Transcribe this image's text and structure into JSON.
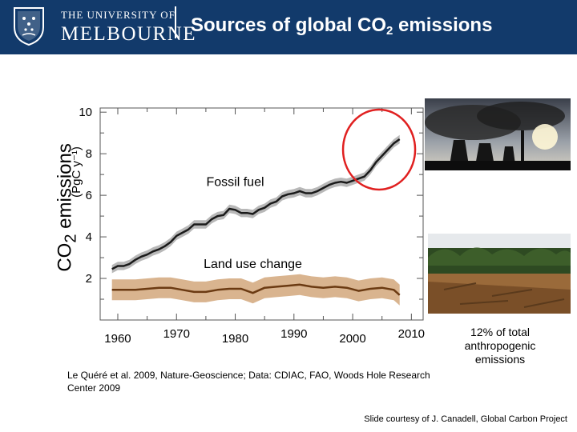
{
  "header": {
    "university_line1": "THE UNIVERSITY OF",
    "university_line2": "MELBOURNE",
    "title_prefix": "Sources of global CO",
    "title_sub": "2",
    "title_suffix": " emissions",
    "bg_color": "#123a6b",
    "crest_icon": "university-crest-icon"
  },
  "chart_data": {
    "type": "line",
    "ylabel_main_prefix": "CO",
    "ylabel_main_sub": "2",
    "ylabel_main_suffix": " emissions",
    "ylabel_unit": "(PgC y⁻¹)",
    "yticks": [
      "10",
      "8",
      "6",
      "4",
      "2"
    ],
    "ytick_values": [
      10,
      8,
      6,
      4,
      2
    ],
    "xticks": [
      "1960",
      "1970",
      "1980",
      "1990",
      "2000",
      "2010"
    ],
    "xtick_values": [
      1960,
      1970,
      1980,
      1990,
      2000,
      2010
    ],
    "xlim": [
      1957,
      2012
    ],
    "ylim": [
      0,
      10.2
    ],
    "grid": false,
    "series": [
      {
        "name": "Fossil fuel",
        "color": "#1a1a1a",
        "band_color": "#b8b8b8",
        "uncertainty": 0.2,
        "x": [
          1959,
          1960,
          1961,
          1962,
          1963,
          1964,
          1965,
          1966,
          1967,
          1968,
          1969,
          1970,
          1971,
          1972,
          1973,
          1974,
          1975,
          1976,
          1977,
          1978,
          1979,
          1980,
          1981,
          1982,
          1983,
          1984,
          1985,
          1986,
          1987,
          1988,
          1989,
          1990,
          1991,
          1992,
          1993,
          1994,
          1995,
          1996,
          1997,
          1998,
          1999,
          2000,
          2001,
          2002,
          2003,
          2004,
          2005,
          2006,
          2007,
          2008
        ],
        "values": [
          2.45,
          2.6,
          2.6,
          2.7,
          2.9,
          3.05,
          3.15,
          3.3,
          3.4,
          3.55,
          3.75,
          4.05,
          4.2,
          4.35,
          4.6,
          4.6,
          4.6,
          4.85,
          5.0,
          5.05,
          5.35,
          5.3,
          5.15,
          5.15,
          5.1,
          5.3,
          5.4,
          5.6,
          5.7,
          5.95,
          6.05,
          6.1,
          6.2,
          6.1,
          6.1,
          6.2,
          6.35,
          6.5,
          6.6,
          6.65,
          6.6,
          6.7,
          6.8,
          6.9,
          7.2,
          7.6,
          7.9,
          8.2,
          8.5,
          8.7
        ]
      },
      {
        "name": "Land use change",
        "color": "#6b3a12",
        "band_color": "#d9b48f",
        "uncertainty": 0.5,
        "x": [
          1959,
          1961,
          1963,
          1965,
          1967,
          1969,
          1971,
          1973,
          1975,
          1977,
          1979,
          1981,
          1983,
          1985,
          1987,
          1989,
          1991,
          1993,
          1995,
          1997,
          1999,
          2001,
          2003,
          2005,
          2007,
          2008
        ],
        "values": [
          1.45,
          1.45,
          1.45,
          1.5,
          1.55,
          1.55,
          1.45,
          1.35,
          1.35,
          1.45,
          1.5,
          1.5,
          1.3,
          1.55,
          1.6,
          1.65,
          1.7,
          1.6,
          1.55,
          1.6,
          1.55,
          1.4,
          1.5,
          1.55,
          1.45,
          1.2
        ]
      }
    ],
    "annotations": [
      {
        "label": "Fossil fuel",
        "x": 1980,
        "y": 6.45
      },
      {
        "label": "Land use change",
        "x": 1983,
        "y": 2.5
      }
    ],
    "highlight": {
      "shape": "circle",
      "color": "#e02020",
      "x_center": 2004.5,
      "y_center": 8.2
    }
  },
  "side": {
    "percent_note": "12% of total anthropogenic emissions"
  },
  "footer": {
    "citation": "Le Quéré et al. 2009, Nature-Geoscience; Data: CDIAC, FAO, Woods Hole Research Center 2009",
    "courtesy": "Slide courtesy of J. Canadell, Global Carbon Project"
  }
}
